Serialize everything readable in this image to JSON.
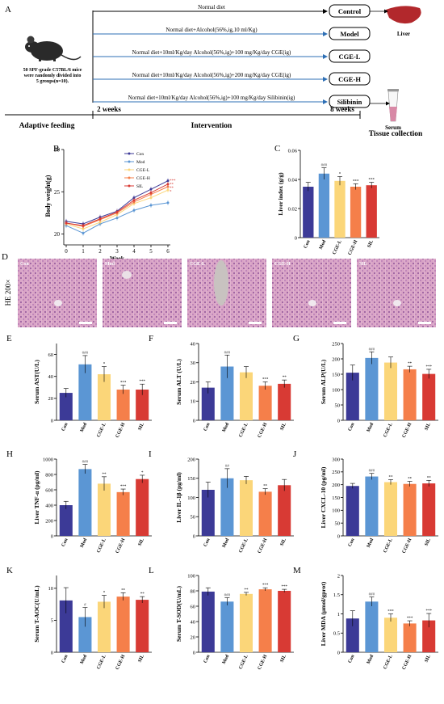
{
  "colors": {
    "con": "#3c3a97",
    "mod": "#5b96d4",
    "cgel": "#fbd679",
    "cgeh": "#f57f4a",
    "sil": "#d83a34",
    "arrow": "#2e6fb5",
    "liver": "#b2282c",
    "tissue": "#d889a6"
  },
  "panelA": {
    "label": "A",
    "mice_text": [
      "50 SPF-grade C57BL/6 mice",
      "were randomly divided into",
      "5 groups(n=10)."
    ],
    "arms": [
      {
        "text": "Normal diet",
        "group": "Control"
      },
      {
        "text": "Normal diet+Alcohol(56%,ig,10 ml/Kg)",
        "group": "Model"
      },
      {
        "text": "Normal diet+10ml/Kg/day Alcohol(56%,ig)+100 mg/Kg/day CGE(ig)",
        "group": "CGE-L"
      },
      {
        "text": "Normal diet+10ml/Kg/day Alcohol(56%,ig)+200 mg/Kg/day CGE(ig)",
        "group": "CGE-H"
      },
      {
        "text": "Normal diet+10ml/Kg/day Alcohol(56%,ig)+100 mg/Kg/day Silibinin(ig)",
        "group": "Silibinin"
      }
    ],
    "liver_label": "Liver",
    "serum_label": "Serum",
    "week2": "2 weeks",
    "week8": "8 weeks",
    "phase_adaptive": "Adaptive feeding",
    "phase_intervention": "Intervention",
    "phase_tissue": "Tissue collection"
  },
  "panelB": {
    "label": "B",
    "chart_data": {
      "type": "line",
      "xlabel": "Week",
      "ylabel": "Body weight(g)",
      "x": [
        0,
        1,
        2,
        3,
        4,
        5,
        6
      ],
      "yticks": [
        20,
        25,
        30
      ],
      "ylim": [
        19,
        30
      ],
      "series": [
        {
          "name": "Con",
          "values": [
            21.5,
            21.2,
            22.0,
            22.7,
            24.3,
            25.3,
            26.3
          ]
        },
        {
          "name": "Mod",
          "values": [
            21.0,
            20.1,
            21.2,
            21.9,
            22.8,
            23.4,
            23.7
          ]
        },
        {
          "name": "CGE-L",
          "values": [
            21.2,
            20.6,
            21.4,
            22.3,
            23.6,
            24.3,
            25.2
          ]
        },
        {
          "name": "CGE-H",
          "values": [
            21.3,
            20.9,
            21.7,
            22.5,
            23.8,
            24.7,
            25.6
          ]
        },
        {
          "name": "SIL",
          "values": [
            21.3,
            21.0,
            21.8,
            22.6,
            24.0,
            24.9,
            25.9
          ]
        }
      ],
      "annotations": [
        "***",
        "**",
        "**",
        "*"
      ]
    }
  },
  "categories": [
    "Con",
    "Mod",
    "CGE-L",
    "CGE-H",
    "SIL"
  ],
  "panelD": {
    "label": "D",
    "ylabel": "HE 200×",
    "images": [
      "Con",
      "Mod",
      "CGE-L",
      "CGE-H",
      "SIL"
    ]
  },
  "bars": [
    {
      "id": "C",
      "ylabel": "Liver index  (g/g)",
      "yticks": [
        0,
        0.02,
        0.04,
        0.06
      ],
      "ylim": [
        0,
        0.06
      ],
      "values": [
        0.035,
        0.044,
        0.039,
        0.035,
        0.036
      ],
      "errors": [
        0.003,
        0.004,
        0.003,
        0.002,
        0.002
      ],
      "sig": [
        "",
        "###",
        "*",
        "***",
        "***"
      ]
    },
    {
      "id": "E",
      "ylabel": "Serum AST(U/L)",
      "yticks": [
        0,
        20,
        40,
        60
      ],
      "ylim": [
        0,
        70
      ],
      "values": [
        25,
        51,
        42,
        28,
        28
      ],
      "errors": [
        4,
        8,
        7,
        4,
        5
      ],
      "sig": [
        "",
        "###",
        "*",
        "***",
        "***"
      ]
    },
    {
      "id": "F",
      "ylabel": "Serum ALT  (U/L)",
      "yticks": [
        0,
        10,
        20,
        30,
        40
      ],
      "ylim": [
        0,
        40
      ],
      "values": [
        17,
        28,
        25,
        18,
        19
      ],
      "errors": [
        3,
        6,
        3,
        2,
        2
      ],
      "sig": [
        "",
        "###",
        "",
        "***",
        "**"
      ]
    },
    {
      "id": "G",
      "ylabel": "Serum ALP(U/L)",
      "yticks": [
        0,
        50,
        100,
        150,
        200,
        250
      ],
      "ylim": [
        0,
        250
      ],
      "values": [
        155,
        203,
        188,
        166,
        151
      ],
      "errors": [
        25,
        20,
        18,
        10,
        15
      ],
      "sig": [
        "",
        "###",
        "",
        "**",
        "***"
      ]
    },
    {
      "id": "H",
      "ylabel": "Liver TNF-α (pg/ml)",
      "yticks": [
        0,
        200,
        400,
        600,
        800,
        1000
      ],
      "ylim": [
        0,
        1000
      ],
      "values": [
        400,
        870,
        680,
        570,
        740
      ],
      "errors": [
        50,
        60,
        90,
        40,
        50
      ],
      "sig": [
        "",
        "###",
        "**",
        "***",
        "*"
      ]
    },
    {
      "id": "I",
      "ylabel": "Liver IL-1β  (pg/ml)",
      "yticks": [
        0,
        50,
        100,
        150,
        200
      ],
      "ylim": [
        0,
        200
      ],
      "values": [
        120,
        150,
        145,
        115,
        132
      ],
      "errors": [
        20,
        25,
        10,
        8,
        15
      ],
      "sig": [
        "",
        "##",
        "",
        "**",
        ""
      ]
    },
    {
      "id": "J",
      "ylabel": "Liver CXCL-10  (pg/ml)",
      "yticks": [
        0,
        50,
        100,
        150,
        200,
        250,
        300
      ],
      "ylim": [
        0,
        300
      ],
      "values": [
        195,
        232,
        210,
        203,
        205
      ],
      "errors": [
        10,
        12,
        10,
        10,
        12
      ],
      "sig": [
        "",
        "###",
        "**",
        "**",
        "**"
      ]
    },
    {
      "id": "K",
      "ylabel": "Serum T-AOC(U/mL)",
      "yticks": [
        0,
        5,
        10
      ],
      "ylim": [
        0,
        12
      ],
      "values": [
        8.1,
        5.5,
        7.9,
        8.7,
        8.2
      ],
      "errors": [
        2.0,
        1.5,
        1.0,
        0.6,
        0.5
      ],
      "sig": [
        "",
        "#",
        "*",
        "**",
        "**"
      ]
    },
    {
      "id": "L",
      "ylabel": "Serum T-SOD(U/mL)",
      "yticks": [
        0,
        20,
        40,
        60,
        80,
        100
      ],
      "ylim": [
        0,
        100
      ],
      "values": [
        79,
        66,
        76,
        82,
        80
      ],
      "errors": [
        5,
        5,
        2,
        2,
        2
      ],
      "sig": [
        "",
        "###",
        "**",
        "***",
        "***"
      ]
    },
    {
      "id": "M",
      "ylabel": "Liver MDA  (μmol/gprot)",
      "yticks": [
        0,
        0.5,
        1.0,
        1.5,
        2.0
      ],
      "ylim": [
        0,
        2.0
      ],
      "values": [
        0.88,
        1.32,
        0.9,
        0.75,
        0.83
      ],
      "errors": [
        0.2,
        0.12,
        0.1,
        0.07,
        0.18
      ],
      "sig": [
        "",
        "###",
        "***",
        "***",
        "***"
      ]
    }
  ]
}
